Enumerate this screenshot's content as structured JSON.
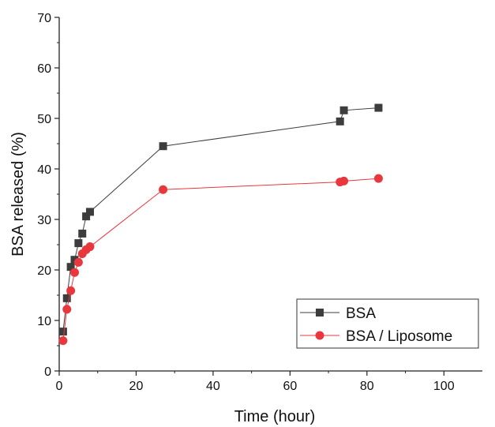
{
  "chart_data": {
    "type": "line",
    "xlabel": "Time (hour)",
    "ylabel": "BSA released (%)",
    "xlim": [
      0,
      110
    ],
    "ylim": [
      0,
      70
    ],
    "x_ticks": [
      0,
      20,
      40,
      60,
      80,
      100
    ],
    "y_ticks": [
      0,
      10,
      20,
      30,
      40,
      50,
      60,
      70
    ],
    "grid": false,
    "legend_position": "bottom-right",
    "series": [
      {
        "name": "BSA",
        "color": "#3d3d3d",
        "marker": "square",
        "x": [
          1,
          2,
          3,
          4,
          5,
          6,
          7,
          8,
          27,
          73,
          74,
          83
        ],
        "y": [
          7.8,
          14.4,
          20.6,
          22.0,
          25.3,
          27.2,
          30.6,
          31.5,
          44.5,
          49.4,
          51.6,
          52.1
        ]
      },
      {
        "name": "BSA / Liposome",
        "color": "#e8383d",
        "marker": "circle",
        "x": [
          1,
          2,
          3,
          4,
          5,
          6,
          7,
          8,
          27,
          73,
          74,
          83
        ],
        "y": [
          6.0,
          12.2,
          15.9,
          19.5,
          21.5,
          23.2,
          24.0,
          24.6,
          35.9,
          37.4,
          37.6,
          38.1
        ]
      }
    ]
  }
}
